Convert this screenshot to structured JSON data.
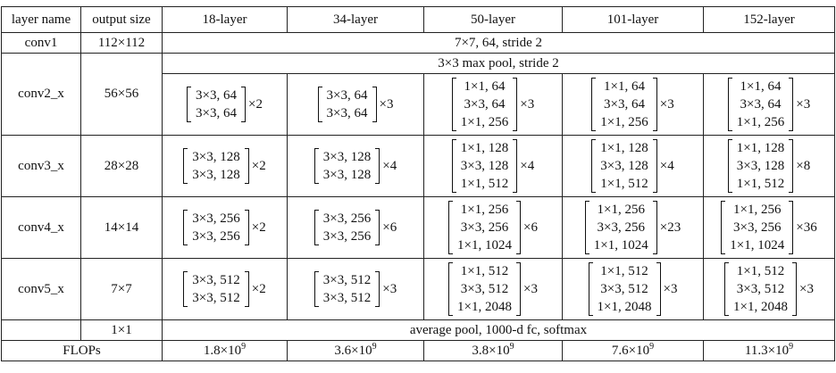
{
  "header": {
    "layer_name": "layer name",
    "output_size": "output size",
    "cols": [
      "18-layer",
      "34-layer",
      "50-layer",
      "101-layer",
      "152-layer"
    ]
  },
  "conv1": {
    "name": "conv1",
    "size": "112×112",
    "spec": "7×7, 64, stride 2"
  },
  "pool": {
    "spec": "3×3 max pool, stride 2"
  },
  "stages": [
    {
      "name": "conv2_x",
      "size": "56×56",
      "blocks": [
        {
          "lines": [
            "3×3, 64",
            "3×3, 64"
          ],
          "repeat": "×2"
        },
        {
          "lines": [
            "3×3, 64",
            "3×3, 64"
          ],
          "repeat": "×3"
        },
        {
          "lines": [
            "1×1, 64",
            "3×3, 64",
            "1×1, 256"
          ],
          "repeat": "×3"
        },
        {
          "lines": [
            "1×1, 64",
            "3×3, 64",
            "1×1, 256"
          ],
          "repeat": "×3"
        },
        {
          "lines": [
            "1×1, 64",
            "3×3, 64",
            "1×1, 256"
          ],
          "repeat": "×3"
        }
      ]
    },
    {
      "name": "conv3_x",
      "size": "28×28",
      "blocks": [
        {
          "lines": [
            "3×3, 128",
            "3×3, 128"
          ],
          "repeat": "×2"
        },
        {
          "lines": [
            "3×3, 128",
            "3×3, 128"
          ],
          "repeat": "×4"
        },
        {
          "lines": [
            "1×1, 128",
            "3×3, 128",
            "1×1, 512"
          ],
          "repeat": "×4"
        },
        {
          "lines": [
            "1×1, 128",
            "3×3, 128",
            "1×1, 512"
          ],
          "repeat": "×4"
        },
        {
          "lines": [
            "1×1, 128",
            "3×3, 128",
            "1×1, 512"
          ],
          "repeat": "×8"
        }
      ]
    },
    {
      "name": "conv4_x",
      "size": "14×14",
      "blocks": [
        {
          "lines": [
            "3×3, 256",
            "3×3, 256"
          ],
          "repeat": "×2"
        },
        {
          "lines": [
            "3×3, 256",
            "3×3, 256"
          ],
          "repeat": "×6"
        },
        {
          "lines": [
            "1×1, 256",
            "3×3, 256",
            "1×1, 1024"
          ],
          "repeat": "×6"
        },
        {
          "lines": [
            "1×1, 256",
            "3×3, 256",
            "1×1, 1024"
          ],
          "repeat": "×23"
        },
        {
          "lines": [
            "1×1, 256",
            "3×3, 256",
            "1×1, 1024"
          ],
          "repeat": "×36"
        }
      ]
    },
    {
      "name": "conv5_x",
      "size": "7×7",
      "blocks": [
        {
          "lines": [
            "3×3, 512",
            "3×3, 512"
          ],
          "repeat": "×2"
        },
        {
          "lines": [
            "3×3, 512",
            "3×3, 512"
          ],
          "repeat": "×3"
        },
        {
          "lines": [
            "1×1, 512",
            "3×3, 512",
            "1×1, 2048"
          ],
          "repeat": "×3"
        },
        {
          "lines": [
            "1×1, 512",
            "3×3, 512",
            "1×1, 2048"
          ],
          "repeat": "×3"
        },
        {
          "lines": [
            "1×1, 512",
            "3×3, 512",
            "1×1, 2048"
          ],
          "repeat": "×3"
        }
      ]
    }
  ],
  "final": {
    "size": "1×1",
    "spec": "average pool, 1000-d fc, softmax"
  },
  "flops": {
    "label": "FLOPs",
    "values": [
      {
        "mantissa": "1.8×10",
        "exp": "9"
      },
      {
        "mantissa": "3.6×10",
        "exp": "9"
      },
      {
        "mantissa": "3.8×10",
        "exp": "9"
      },
      {
        "mantissa": "7.6×10",
        "exp": "9"
      },
      {
        "mantissa": "11.3×10",
        "exp": "9"
      }
    ]
  }
}
